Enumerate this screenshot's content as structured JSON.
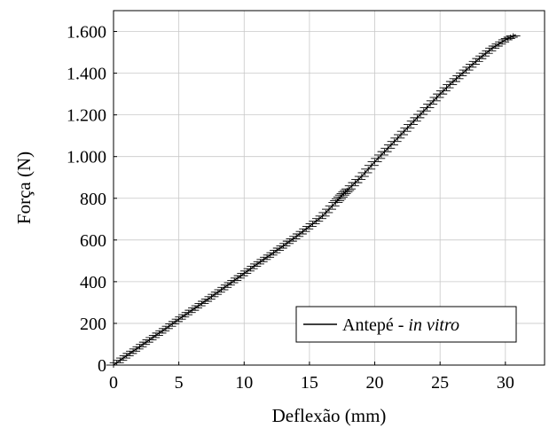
{
  "chart_data": {
    "type": "line",
    "xlabel": "Deflexão (mm)",
    "ylabel": "Força (N)",
    "xlim": [
      0,
      33
    ],
    "ylim": [
      0,
      1700
    ],
    "x_ticks": [
      0,
      5,
      10,
      15,
      20,
      25,
      30
    ],
    "y_ticks": [
      0,
      200,
      400,
      600,
      800,
      1000,
      1200,
      1400,
      1600
    ],
    "x_tick_labels": [
      "0",
      "5",
      "10",
      "15",
      "20",
      "25",
      "30"
    ],
    "y_tick_labels": [
      "0",
      "200",
      "400",
      "600",
      "800",
      "1.000",
      "1.200",
      "1.400",
      "1.600"
    ],
    "grid": true,
    "legend_position": "bottom-right",
    "legend": {
      "label_prefix": "Antepé - ",
      "label_italic": "in vitro"
    },
    "series": [
      {
        "name": "Antepé - in vitro",
        "color": "#000000",
        "error_bar_halfwidth": 8,
        "x": [
          0,
          1,
          2,
          3,
          4,
          5,
          6,
          7,
          8,
          9,
          10,
          11,
          12,
          13,
          14,
          15,
          16,
          17,
          17.5,
          18,
          19,
          20,
          21,
          22,
          23,
          24,
          25,
          26,
          27,
          28,
          29,
          30,
          30.8
        ],
        "y": [
          0,
          45,
          88,
          132,
          175,
          220,
          263,
          306,
          350,
          395,
          440,
          485,
          528,
          572,
          617,
          665,
          715,
          780,
          815,
          845,
          905,
          975,
          1040,
          1105,
          1170,
          1235,
          1300,
          1360,
          1415,
          1470,
          1520,
          1560,
          1585
        ]
      }
    ]
  }
}
